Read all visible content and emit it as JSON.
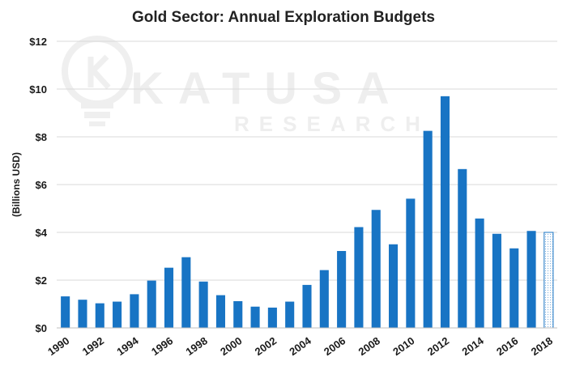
{
  "chart_data": {
    "type": "bar",
    "title": "Gold Sector: Annual Exploration Budgets",
    "ylabel": "(Billions USD)",
    "xlabel": "",
    "ylim": [
      0,
      12
    ],
    "yticks": [
      0,
      2,
      4,
      6,
      8,
      10,
      12
    ],
    "ytick_labels": [
      "$0",
      "$2",
      "$4",
      "$6",
      "$8",
      "$10",
      "$12"
    ],
    "grid": true,
    "categories": [
      "1990",
      "1991",
      "1992",
      "1993",
      "1994",
      "1995",
      "1996",
      "1997",
      "1998",
      "1999",
      "2000",
      "2001",
      "2002",
      "2003",
      "2004",
      "2005",
      "2006",
      "2007",
      "2008",
      "2009",
      "2010",
      "2011",
      "2012",
      "2013",
      "2014",
      "2015",
      "2016",
      "2017",
      "2018"
    ],
    "xtick_labels": [
      "1990",
      "1992",
      "1994",
      "1996",
      "1998",
      "2000",
      "2002",
      "2004",
      "2006",
      "2008",
      "2010",
      "2012",
      "2014",
      "2016",
      "2018"
    ],
    "values": [
      1.32,
      1.18,
      1.03,
      1.1,
      1.41,
      1.98,
      2.52,
      2.96,
      1.94,
      1.37,
      1.12,
      0.89,
      0.85,
      1.1,
      1.8,
      2.42,
      3.22,
      4.22,
      4.94,
      3.5,
      5.41,
      8.25,
      9.7,
      6.65,
      4.58,
      3.94,
      3.33,
      4.06,
      4.0
    ],
    "bar_color": "#1874c4",
    "forecast_last_bar": true,
    "watermark": [
      "KATUSA",
      "RESEARCH"
    ]
  }
}
